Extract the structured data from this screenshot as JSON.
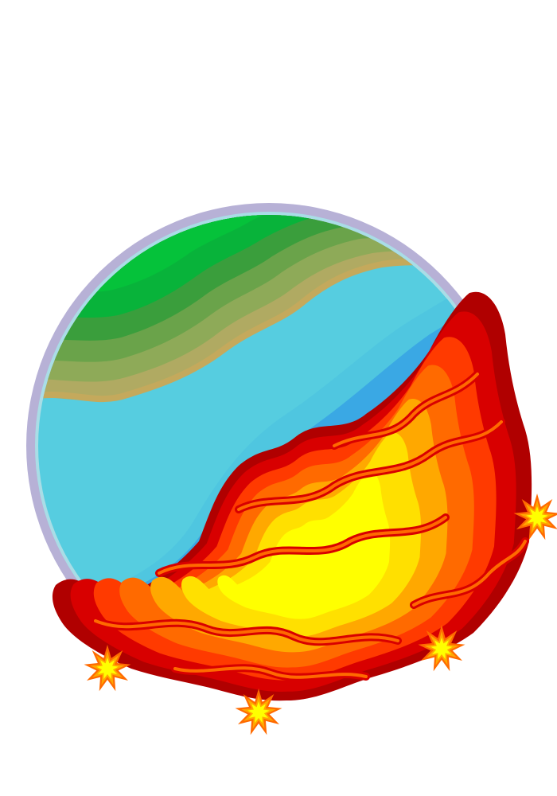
{
  "illustration": {
    "subject": "planet-with-lava-flow",
    "colors": {
      "background": "#ffffff",
      "halo": "#b7b1d6",
      "halo_inner": "#a9dde6",
      "land": [
        "#05c23a",
        "#08b33a",
        "#1ea83c",
        "#3a9e3c",
        "#6aa34a",
        "#8eaa58",
        "#b0aa62"
      ],
      "shore": "#c4a95c",
      "water": [
        "#56cde0",
        "#4fc6e0",
        "#3aa8e4",
        "#1d7fe2",
        "#0a52e0",
        "#0018d8"
      ],
      "lava": [
        "#b00000",
        "#d80000",
        "#ff3a00",
        "#ff6a00",
        "#ffa800",
        "#ffe000",
        "#ffff00"
      ]
    }
  }
}
